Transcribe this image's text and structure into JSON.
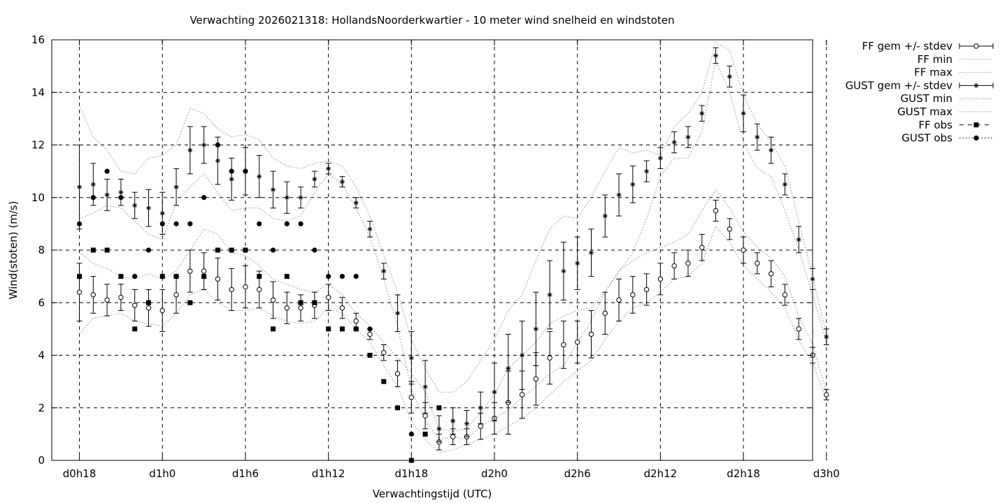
{
  "chart_data": {
    "type": "line",
    "title": "Verwachting 2026021318: HollandsNoorderkwartier - 10 meter wind snelheid en windstoten",
    "xlabel": "Verwachtingstijd (UTC)",
    "ylabel": "Wind(stoten) (m/s)",
    "ylim": [
      0,
      16
    ],
    "yticks": [
      0,
      2,
      4,
      6,
      8,
      10,
      12,
      14,
      16
    ],
    "xlim_hours": [
      16,
      71
    ],
    "xticks": [
      {
        "h": 18,
        "label": "d0h18"
      },
      {
        "h": 24,
        "label": "d1h0"
      },
      {
        "h": 30,
        "label": "d1h6"
      },
      {
        "h": 36,
        "label": "d1h12"
      },
      {
        "h": 42,
        "label": "d1h18"
      },
      {
        "h": 48,
        "label": "d2h0"
      },
      {
        "h": 54,
        "label": "d2h6"
      },
      {
        "h": 60,
        "label": "d2h12"
      },
      {
        "h": 66,
        "label": "d2h18"
      },
      {
        "h": 72,
        "label": "d3h0"
      }
    ],
    "grid": true,
    "legend_position": "outside-right",
    "legend": [
      {
        "label": "FF gem +/- stdev",
        "style": "errorbar-circle"
      },
      {
        "label": "FF min",
        "style": "dotted"
      },
      {
        "label": "FF max",
        "style": "dotted"
      },
      {
        "label": "GUST gem +/- stdev",
        "style": "errorbar-star"
      },
      {
        "label": "GUST min",
        "style": "dotted"
      },
      {
        "label": "GUST max",
        "style": "dotted"
      },
      {
        "label": "FF obs",
        "style": "square-dashed"
      },
      {
        "label": "GUST obs",
        "style": "dot-dotted"
      }
    ],
    "hours": [
      18,
      19,
      20,
      21,
      22,
      23,
      24,
      25,
      26,
      27,
      28,
      29,
      30,
      31,
      32,
      33,
      34,
      35,
      36,
      37,
      38,
      39,
      40,
      41,
      42,
      43,
      44,
      45,
      46,
      47,
      48,
      49,
      50,
      51,
      52,
      53,
      54,
      55,
      56,
      57,
      58,
      59,
      60,
      61,
      62,
      63,
      64,
      65,
      66,
      67,
      68,
      69,
      70,
      71,
      72
    ],
    "series": [
      {
        "name": "FF gem +/- stdev",
        "mean": [
          6.4,
          6.3,
          6.1,
          6.2,
          5.9,
          5.8,
          5.7,
          6.3,
          7.2,
          7.2,
          6.9,
          6.5,
          6.6,
          6.5,
          6.1,
          5.8,
          5.8,
          5.9,
          6.2,
          5.8,
          5.3,
          4.8,
          4.1,
          3.3,
          2.4,
          1.7,
          0.7,
          0.9,
          0.9,
          1.3,
          1.6,
          2.2,
          2.5,
          3.1,
          3.9,
          4.4,
          4.5,
          4.8,
          5.6,
          6.1,
          6.3,
          6.5,
          6.9,
          7.4,
          7.5,
          8.1,
          9.5,
          8.8,
          8.0,
          7.5,
          7.1,
          6.3,
          5.0,
          4.0,
          2.5
        ],
        "stdev": [
          1.1,
          0.7,
          0.6,
          0.5,
          0.6,
          0.7,
          0.8,
          0.7,
          0.8,
          0.7,
          0.8,
          0.8,
          0.8,
          0.7,
          0.7,
          0.6,
          0.5,
          0.5,
          0.5,
          0.4,
          0.3,
          0.2,
          0.3,
          0.5,
          0.6,
          0.5,
          0.3,
          0.3,
          0.3,
          0.5,
          0.6,
          1.2,
          0.9,
          1.0,
          1.0,
          0.9,
          0.8,
          0.9,
          0.8,
          0.8,
          0.7,
          0.6,
          0.6,
          0.5,
          0.5,
          0.5,
          0.4,
          0.4,
          0.5,
          0.4,
          0.5,
          0.4,
          0.4,
          0.3,
          0.2
        ]
      },
      {
        "name": "FF min",
        "values": [
          4.8,
          5.4,
          5.5,
          5.6,
          5.3,
          5.2,
          5.1,
          5.6,
          6.3,
          6.5,
          6.0,
          5.7,
          5.7,
          5.8,
          5.5,
          5.3,
          5.2,
          5.3,
          5.8,
          5.6,
          5.0,
          4.5,
          3.6,
          2.8,
          1.5,
          0.8,
          0.3,
          0.4,
          0.6,
          0.8,
          1.0,
          1.3,
          1.6,
          2.0,
          2.5,
          3.0,
          3.4,
          3.8,
          4.6,
          5.3,
          5.8,
          6.0,
          6.4,
          6.9,
          7.0,
          7.5,
          8.9,
          8.3,
          7.4,
          6.9,
          6.4,
          5.8,
          4.6,
          3.7,
          2.3
        ]
      },
      {
        "name": "FF max",
        "values": [
          7.9,
          7.5,
          7.3,
          7.0,
          6.9,
          7.1,
          6.9,
          7.2,
          8.0,
          8.8,
          8.6,
          7.9,
          7.8,
          7.4,
          6.9,
          6.7,
          6.5,
          6.4,
          6.7,
          6.3,
          5.6,
          5.1,
          4.5,
          3.9,
          3.3,
          2.6,
          1.2,
          1.1,
          1.2,
          1.8,
          2.5,
          3.5,
          4.0,
          4.5,
          5.2,
          5.5,
          5.7,
          5.8,
          6.4,
          7.2,
          7.6,
          7.9,
          8.1,
          8.3,
          8.6,
          9.5,
          10.3,
          9.6,
          8.7,
          8.1,
          7.7,
          7.0,
          5.5,
          4.4,
          2.6
        ]
      },
      {
        "name": "GUST gem +/- stdev",
        "mean": [
          10.4,
          10.5,
          10.1,
          10.2,
          9.7,
          9.6,
          9.4,
          10.4,
          11.8,
          12.0,
          11.4,
          10.7,
          11.0,
          10.8,
          10.3,
          10.0,
          10.0,
          10.7,
          11.1,
          10.6,
          9.8,
          8.8,
          7.2,
          5.6,
          3.9,
          2.8,
          1.2,
          1.5,
          1.4,
          2.0,
          2.6,
          3.5,
          4.0,
          5.0,
          6.3,
          7.2,
          7.5,
          7.9,
          9.3,
          10.1,
          10.5,
          11.0,
          11.5,
          12.1,
          12.3,
          13.2,
          15.4,
          14.6,
          13.2,
          12.3,
          11.8,
          10.5,
          8.4,
          6.9,
          4.7
        ],
        "stdev": [
          1.6,
          0.8,
          0.6,
          0.5,
          0.5,
          0.7,
          0.8,
          0.7,
          0.9,
          0.7,
          0.9,
          0.8,
          0.9,
          0.8,
          0.7,
          0.6,
          0.4,
          0.3,
          0.2,
          0.2,
          0.2,
          0.3,
          0.3,
          0.7,
          1.0,
          1.0,
          0.5,
          0.5,
          0.5,
          0.6,
          1.1,
          1.3,
          1.3,
          1.4,
          1.3,
          1.1,
          1.0,
          0.9,
          0.8,
          0.8,
          0.7,
          0.4,
          0.4,
          0.4,
          0.4,
          0.3,
          0.3,
          0.4,
          0.7,
          0.5,
          0.5,
          0.4,
          0.5,
          0.4,
          0.3
        ]
      },
      {
        "name": "GUST min",
        "values": [
          9.2,
          9.4,
          9.7,
          9.6,
          9.1,
          8.6,
          8.4,
          9.8,
          10.4,
          10.9,
          10.2,
          9.5,
          9.6,
          9.6,
          9.2,
          9.1,
          9.3,
          10.2,
          10.9,
          10.5,
          9.6,
          8.5,
          6.9,
          5.1,
          2.7,
          1.5,
          0.8,
          0.9,
          0.8,
          1.3,
          1.6,
          1.9,
          2.4,
          2.8,
          3.3,
          3.6,
          4.5,
          5.3,
          6.4,
          7.2,
          7.9,
          9.2,
          10.8,
          11.5,
          11.5,
          12.5,
          15.2,
          14.0,
          12.1,
          11.1,
          10.8,
          9.5,
          8.0,
          6.3,
          4.5
        ]
      },
      {
        "name": "GUST max",
        "values": [
          13.5,
          12.3,
          11.8,
          11.0,
          10.9,
          11.5,
          11.6,
          12.0,
          13.4,
          13.2,
          12.6,
          12.3,
          12.4,
          12.2,
          11.5,
          11.2,
          11.1,
          11.3,
          11.4,
          11.2,
          10.4,
          9.3,
          7.8,
          6.4,
          4.6,
          3.5,
          2.6,
          2.6,
          3.0,
          3.8,
          4.6,
          5.7,
          6.3,
          7.6,
          8.8,
          9.3,
          9.2,
          10.0,
          11.0,
          11.9,
          11.7,
          11.8,
          11.6,
          12.7,
          13.2,
          14.0,
          15.9,
          15.6,
          13.9,
          12.8,
          12.1,
          11.2,
          9.1,
          7.0,
          4.8
        ]
      },
      {
        "name": "FF obs",
        "values": [
          7,
          8,
          8,
          7,
          5,
          6,
          7,
          7,
          6,
          7,
          8,
          8,
          8,
          7,
          5,
          7,
          6,
          6,
          5,
          5,
          5,
          4,
          3,
          2,
          0,
          1,
          2
        ]
      },
      {
        "name": "GUST obs",
        "values": [
          9,
          10,
          11,
          10,
          7,
          8,
          9,
          9,
          9,
          10,
          12,
          11,
          11,
          9,
          8,
          9,
          9,
          8,
          7,
          7,
          7,
          5,
          null,
          null,
          1,
          null,
          null
        ]
      }
    ]
  }
}
